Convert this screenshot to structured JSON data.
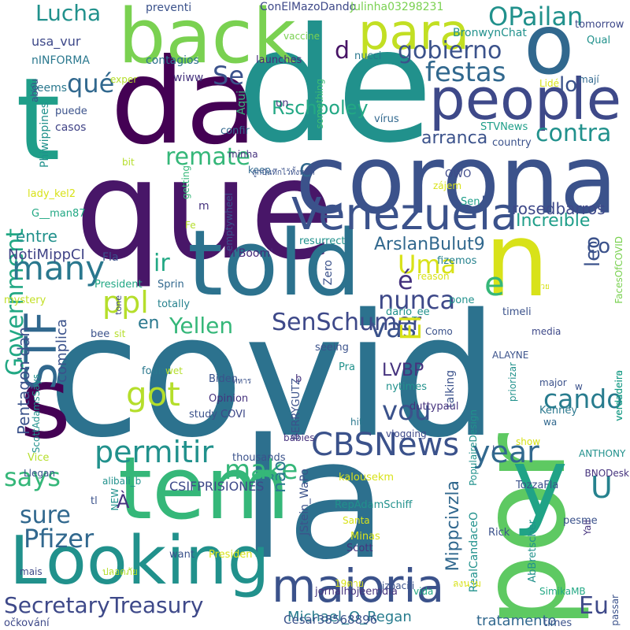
{
  "words": [
    {
      "t": "covid",
      "c": "#2c728e"
    },
    {
      "t": "de",
      "c": "#21918c"
    },
    {
      "t": "que",
      "c": "#481668"
    },
    {
      "t": "la",
      "c": "#2d708e"
    },
    {
      "t": "da",
      "c": "#440154"
    },
    {
      "t": "corona",
      "c": "#3b528b"
    },
    {
      "t": "por",
      "c": "#5ec962"
    },
    {
      "t": "told",
      "c": "#2c728e"
    },
    {
      "t": "Looking",
      "c": "#21918c"
    },
    {
      "t": "tem",
      "c": "#35b779"
    },
    {
      "t": "back",
      "c": "#7ad151"
    },
    {
      "t": "people",
      "c": "#3e4989"
    },
    {
      "t": "n",
      "c": "#d8e219"
    },
    {
      "t": "y",
      "c": "#20a386"
    },
    {
      "t": "t",
      "c": "#1f9e89"
    },
    {
      "t": "s",
      "c": "#440154"
    },
    {
      "t": "o",
      "c": "#31688e"
    },
    {
      "t": "Venezuela",
      "c": "#3b528b"
    },
    {
      "t": "maioria",
      "c": "#3b528b"
    },
    {
      "t": "para",
      "c": "#c2df23"
    },
    {
      "t": "CBSNews",
      "c": "#3b528b"
    },
    {
      "t": "Government",
      "c": "#22a884"
    },
    {
      "t": "permitir",
      "c": "#21918c"
    },
    {
      "t": "SecretaryTreasury",
      "c": "#3e4989"
    },
    {
      "t": "Pfizer",
      "c": "#31688e"
    },
    {
      "t": "year",
      "c": "#31688e"
    },
    {
      "t": "cando",
      "c": "#287c8e"
    },
    {
      "t": "says",
      "c": "#35b779"
    },
    {
      "t": "many",
      "c": "#2a788e"
    },
    {
      "t": "ppl",
      "c": "#b5de2b"
    },
    {
      "t": "STF",
      "c": "#31688e"
    },
    {
      "t": "gobierno",
      "c": "#3b528b"
    },
    {
      "t": "festas",
      "c": "#31688e"
    },
    {
      "t": "qué",
      "c": "#31688e"
    },
    {
      "t": "SenSchumer",
      "c": "#3e4989"
    },
    {
      "t": "nunca",
      "c": "#3e4989"
    },
    {
      "t": "remate",
      "c": "#35b779"
    },
    {
      "t": "contra",
      "c": "#21918c"
    },
    {
      "t": "got",
      "c": "#b5de2b"
    },
    {
      "t": "make",
      "c": "#35b779"
    },
    {
      "t": "vou",
      "c": "#3b528b"
    },
    {
      "t": "vas",
      "c": "#3b528b"
    },
    {
      "t": "sure",
      "c": "#31688e"
    },
    {
      "t": "Yellen",
      "c": "#35b779"
    },
    {
      "t": "OPailan",
      "c": "#21918c"
    },
    {
      "t": "Lucha",
      "c": "#21918c"
    },
    {
      "t": "e",
      "c": "#35b779"
    },
    {
      "t": "Uma",
      "c": "#d8e219"
    },
    {
      "t": "U",
      "c": "#26828e"
    },
    {
      "t": "Eu",
      "c": "#3e4989"
    },
    {
      "t": "El",
      "c": "#d8e219"
    },
    {
      "t": "é",
      "c": "#46337e"
    },
    {
      "t": "não",
      "c": "#2a788e"
    },
    {
      "t": "Se",
      "c": "#3b528b"
    },
    {
      "t": "ir",
      "c": "#22a884"
    },
    {
      "t": "c",
      "c": "#31688e"
    },
    {
      "t": "d",
      "c": "#471365"
    },
    {
      "t": "Increíble",
      "c": "#1f9e89"
    },
    {
      "t": "Rschooley",
      "c": "#22a884"
    },
    {
      "t": "rosedbarros",
      "c": "#3e4989"
    },
    {
      "t": "ArslanBulut9",
      "c": "#31688e"
    },
    {
      "t": "arranca",
      "c": "#3b528b"
    },
    {
      "t": "Mippcivzla",
      "c": "#31688e"
    },
    {
      "t": "LVBP",
      "c": "#46337e"
    },
    {
      "t": "lo",
      "c": "#3b528b"
    },
    {
      "t": "leo",
      "c": "#3b528b"
    },
    {
      "t": "co",
      "c": "#3b528b"
    },
    {
      "t": "en",
      "c": "#2a788e"
    },
    {
      "t": "entre",
      "c": "#21918c"
    },
    {
      "t": "NotiMippCI",
      "c": "#414487"
    },
    {
      "t": "Pentagon'dan",
      "c": "#3b528b"
    },
    {
      "t": "complica",
      "c": "#3b528b"
    },
    {
      "t": "Michael_O_Regan",
      "c": "#287c8e"
    },
    {
      "t": "tratamento",
      "c": "#31688e"
    },
    {
      "t": "Cesar38568896",
      "c": "#3b528b"
    },
    {
      "t": "CSIFPRISIONES",
      "c": "#3e4989"
    },
    {
      "t": "usa_vur",
      "c": "#3e4989"
    },
    {
      "t": "ConElMazoDando",
      "c": "#3e4989"
    },
    {
      "t": "Julinha03298231",
      "c": "#7ad151"
    },
    {
      "t": "preventi",
      "c": "#3b528b"
    },
    {
      "t": "vaccine",
      "c": "#7ad151"
    },
    {
      "t": "BronwynChat",
      "c": "#21918c"
    },
    {
      "t": "tomorrow",
      "c": "#3e4989"
    },
    {
      "t": "Qual",
      "c": "#21918c"
    },
    {
      "t": "nINFORMA",
      "c": "#2a788e"
    },
    {
      "t": "Seems",
      "c": "#2a788e"
    },
    {
      "t": "abou",
      "c": "#3b528b"
    },
    {
      "t": "exper",
      "c": "#b5de2b"
    },
    {
      "t": "wiww",
      "c": "#46337e"
    },
    {
      "t": "contagios",
      "c": "#2c728e"
    },
    {
      "t": "launches",
      "c": "#472a7a"
    },
    {
      "t": "nucci",
      "c": "#2a788e"
    },
    {
      "t": "Lidé",
      "c": "#d8e219"
    },
    {
      "t": "mají",
      "c": "#31688e"
    },
    {
      "t": "un",
      "c": "#46337e"
    },
    {
      "t": "something",
      "c": "#3dbc74"
    },
    {
      "t": "vírus",
      "c": "#31688e"
    },
    {
      "t": "puede",
      "c": "#3b528b"
    },
    {
      "t": "casos",
      "c": "#414487"
    },
    {
      "t": "Phiwippines",
      "c": "#21918c"
    },
    {
      "t": "Aqui",
      "c": "#35b779"
    },
    {
      "t": "confir",
      "c": "#31688e"
    },
    {
      "t": "minha",
      "c": "#46337e"
    },
    {
      "t": "STVNews",
      "c": "#1f9e89"
    },
    {
      "t": "country",
      "c": "#3b528b"
    },
    {
      "t": "keep",
      "c": "#31688e"
    },
    {
      "t": "OWO",
      "c": "#3e4989"
    },
    {
      "t": "zájem",
      "c": "#d8e219"
    },
    {
      "t": "bit",
      "c": "#b5de2b"
    },
    {
      "t": "getting",
      "c": "#35b779"
    },
    {
      "t": "emptywheel",
      "c": "#3b528b"
    },
    {
      "t": "Sen",
      "c": "#1f9e89"
    },
    {
      "t": "lady_kel2",
      "c": "#d8e219"
    },
    {
      "t": "G__man87",
      "c": "#22a884"
    },
    {
      "t": "m",
      "c": "#46337e"
    },
    {
      "t": "Fe",
      "c": "#b5de2b"
    },
    {
      "t": "resurrect",
      "c": "#21918c"
    },
    {
      "t": "n'Boom'",
      "c": "#472a7a"
    },
    {
      "t": "Fla",
      "c": "#3b528b"
    },
    {
      "t": "Zero",
      "c": "#3b528b"
    },
    {
      "t": "President",
      "c": "#22a884"
    },
    {
      "t": "Sprin",
      "c": "#31688e"
    },
    {
      "t": "totally",
      "c": "#26828e"
    },
    {
      "t": "tone",
      "c": "#3e4989"
    },
    {
      "t": "mystery",
      "c": "#c2df23"
    },
    {
      "t": "reason",
      "c": "#d8e219"
    },
    {
      "t": "fizemos",
      "c": "#26828e"
    },
    {
      "t": "dario_ee",
      "c": "#21918c"
    },
    {
      "t": "pone",
      "c": "#21918c"
    },
    {
      "t": "timeli",
      "c": "#3b528b"
    },
    {
      "t": "FacesOfCOVID",
      "c": "#7ad151"
    },
    {
      "t": "bee",
      "c": "#3b528b"
    },
    {
      "t": "sit",
      "c": "#b5de2b"
    },
    {
      "t": "Como",
      "c": "#3b528b"
    },
    {
      "t": "media",
      "c": "#3e4989"
    },
    {
      "t": "seeing",
      "c": "#3b528b"
    },
    {
      "t": "found",
      "c": "#2a788e"
    },
    {
      "t": "wet",
      "c": "#b5de2b"
    },
    {
      "t": "Biden",
      "c": "#3b528b"
    },
    {
      "t": "Pra",
      "c": "#21918c"
    },
    {
      "t": "ALAYNE",
      "c": "#3b528b"
    },
    {
      "t": "priorizar",
      "c": "#21918c"
    },
    {
      "t": "major",
      "c": "#3b528b"
    },
    {
      "t": "verdadeiro",
      "c": "#1f9e89"
    },
    {
      "t": "verdadeira",
      "c": "#1f9e89"
    },
    {
      "t": "w",
      "c": "#3b528b"
    },
    {
      "t": "b",
      "c": "#46337e"
    },
    {
      "t": "BERRYGUTZ",
      "c": "#3b528b"
    },
    {
      "t": "nytimes",
      "c": "#21918c"
    },
    {
      "t": "talking",
      "c": "#3b528b"
    },
    {
      "t": "Kenney",
      "c": "#2a788e"
    },
    {
      "t": "wa",
      "c": "#31688e"
    },
    {
      "t": "Opinion",
      "c": "#46337e"
    },
    {
      "t": "study",
      "c": "#3b528b"
    },
    {
      "t": "COVI",
      "c": "#3e4989"
    },
    {
      "t": "ScottAdamsSays",
      "c": "#21918c"
    },
    {
      "t": "duttypaul",
      "c": "#46337e"
    },
    {
      "t": "hit",
      "c": "#2a788e"
    },
    {
      "t": "vlogging",
      "c": "#3e4989"
    },
    {
      "t": "babies",
      "c": "#46337e"
    },
    {
      "t": "PopulaireDesign",
      "c": "#21918c"
    },
    {
      "t": "show",
      "c": "#d8e219"
    },
    {
      "t": "Vice",
      "c": "#b5de2b"
    },
    {
      "t": "thousands",
      "c": "#3b528b"
    },
    {
      "t": "Llegan",
      "c": "#3b528b"
    },
    {
      "t": "ANTHONY",
      "c": "#21918c"
    },
    {
      "t": "l",
      "c": "#3b528b"
    },
    {
      "t": "alibali_b",
      "c": "#21918c"
    },
    {
      "t": "JStein_WaPo",
      "c": "#3b528b"
    },
    {
      "t": "kalousekm",
      "c": "#d8e219"
    },
    {
      "t": "BNODesk",
      "c": "#46337e"
    },
    {
      "t": "TozzaFla",
      "c": "#3b528b"
    },
    {
      "t": "RepAdamSchiff",
      "c": "#21918c"
    },
    {
      "t": "NEW",
      "c": "#21918c"
    },
    {
      "t": "tl",
      "c": "#3b528b"
    },
    {
      "t": "À",
      "c": "#46337e"
    },
    {
      "t": "Santa",
      "c": "#d8e219"
    },
    {
      "t": "Rick",
      "c": "#3b528b"
    },
    {
      "t": "RealCandaceO",
      "c": "#21918c"
    },
    {
      "t": "AbBretscher",
      "c": "#21918c"
    },
    {
      "t": "pesme",
      "c": "#3b528b"
    },
    {
      "t": "Minas",
      "c": "#d8e219"
    },
    {
      "t": "Yall",
      "c": "#46337e"
    },
    {
      "t": "want",
      "c": "#3b528b"
    },
    {
      "t": "Presiden",
      "c": "#d8e219"
    },
    {
      "t": "mais",
      "c": "#3e4989"
    },
    {
      "t": "jornalhojeemdia",
      "c": "#46337e"
    },
    {
      "t": "vida",
      "c": "#22a884"
    },
    {
      "t": "SimikaMB",
      "c": "#22a884"
    },
    {
      "t": "19ตาย",
      "c": "#d8e219"
    },
    {
      "t": "izbacili",
      "c": "#3b528b"
    },
    {
      "t": "ลงนาม",
      "c": "#d8e219"
    },
    {
      "t": "passar",
      "c": "#3b528b"
    },
    {
      "t": "očkování",
      "c": "#3e4989"
    },
    {
      "t": "times",
      "c": "#3b528b"
    },
    {
      "t": "Scott",
      "c": "#46337e"
    },
    {
      "t": "ปลอดภัย",
      "c": "#b5de2b"
    },
    {
      "t": "ทหาร",
      "c": "#3b528b"
    },
    {
      "t": "ป่วย",
      "c": "#d8e219"
    },
    {
      "t": "ถูกบันทึกไว้ทั้งหมด",
      "c": "#3b528b"
    }
  ]
}
